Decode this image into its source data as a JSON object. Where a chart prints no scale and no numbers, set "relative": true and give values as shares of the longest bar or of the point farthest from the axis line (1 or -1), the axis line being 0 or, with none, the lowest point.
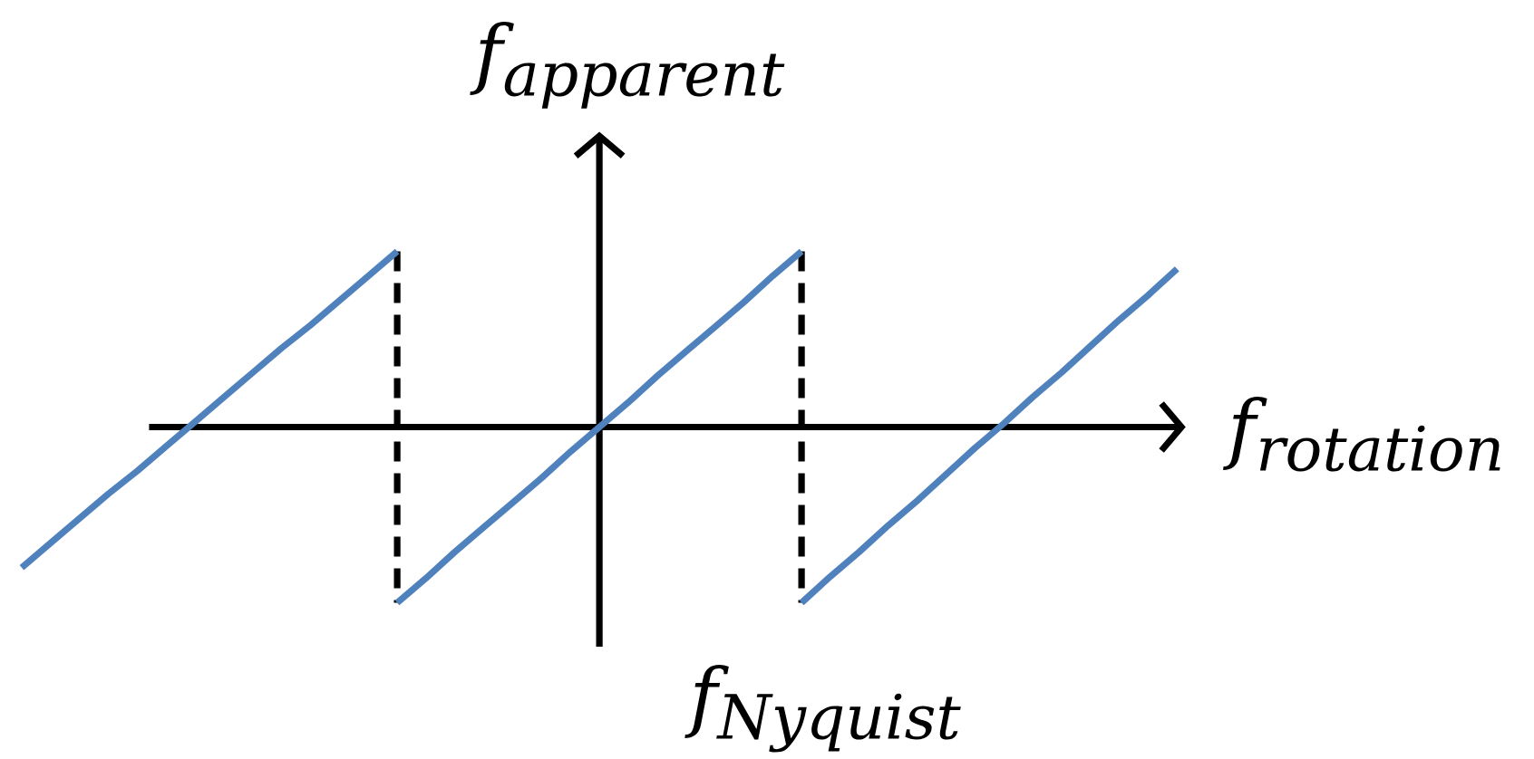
{
  "chart_data": {
    "type": "line",
    "relative": true,
    "xlabel": "f$_{rotation}$",
    "ylabel": "f$_{apparent}$",
    "annotations": [
      "f$_{Nyquist}$"
    ],
    "categories": [
      null,
      null,
      null,
      null,
      null,
      null,
      null,
      null,
      null,
      null,
      null,
      null,
      null,
      null,
      null,
      null,
      null,
      null,
      null,
      null,
      null,
      null,
      null,
      null,
      null,
      null,
      null,
      null,
      null,
      null,
      null,
      null,
      null,
      null,
      null,
      null,
      null,
      null,
      null,
      null,
      null
    ],
    "series": [
      {
        "color": "#4f81bd",
        "values": [
          -0.8,
          -0.66,
          -0.52,
          -0.38,
          -0.25,
          -0.11,
          0.03,
          0.17,
          0.31,
          0.45,
          0.58,
          0.72,
          0.86,
          1.0,
          null,
          null,
          null,
          null,
          null,
          null,
          null,
          null,
          null,
          null,
          null,
          null,
          null,
          null,
          null,
          null,
          null,
          null,
          null,
          null,
          null,
          null,
          null,
          null,
          null,
          null,
          null
        ]
      },
      {
        "color": "#4f81bd",
        "values": [
          null,
          null,
          null,
          null,
          null,
          null,
          null,
          null,
          null,
          null,
          null,
          null,
          null,
          -1.0,
          -0.86,
          -0.71,
          -0.57,
          -0.43,
          -0.29,
          -0.14,
          0.0,
          0.14,
          0.29,
          0.43,
          0.57,
          0.71,
          0.86,
          1.0,
          null,
          null,
          null,
          null,
          null,
          null,
          null,
          null,
          null,
          null,
          null,
          null,
          null
        ]
      },
      {
        "color": "#4f81bd",
        "values": [
          null,
          null,
          null,
          null,
          null,
          null,
          null,
          null,
          null,
          null,
          null,
          null,
          null,
          null,
          null,
          null,
          null,
          null,
          null,
          null,
          null,
          null,
          null,
          null,
          null,
          null,
          null,
          -1.0,
          -0.85,
          -0.71,
          -0.56,
          -0.42,
          -0.27,
          -0.12,
          0.02,
          0.17,
          0.31,
          0.46,
          0.61,
          0.75,
          0.9
        ]
      }
    ]
  }
}
